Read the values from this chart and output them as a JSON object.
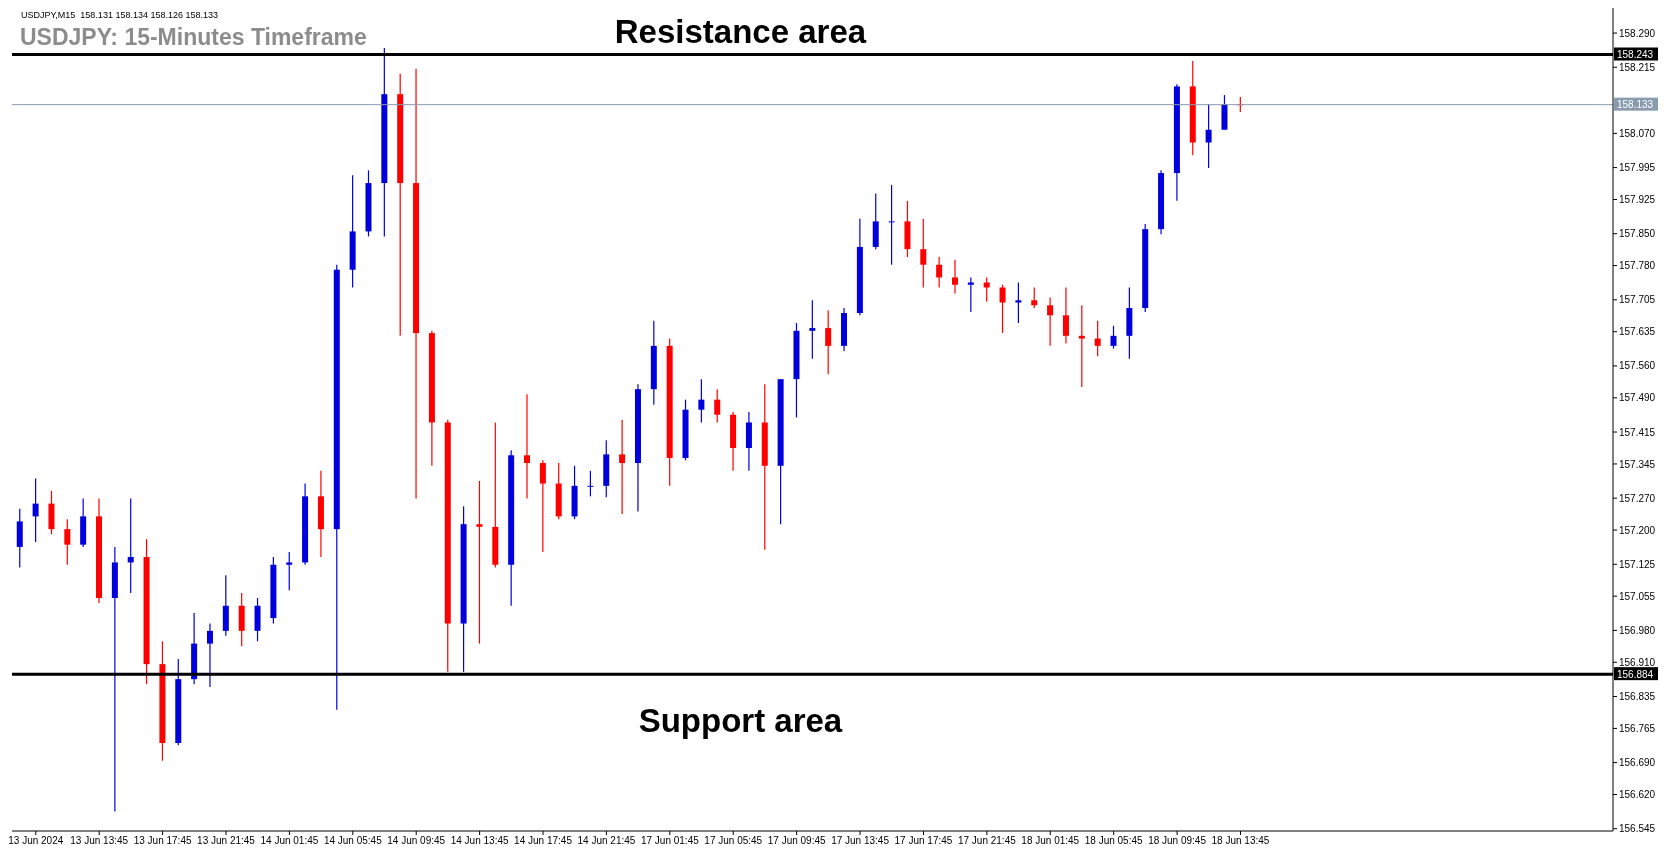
{
  "chart_data": {
    "type": "candlestick",
    "title": "USDJPY: 15-Minutes Timeframe",
    "annotations": [
      "USDJPY,M15  158.131 158.134 158.126 158.133",
      {
        "text": "Resistance area",
        "y": 158.243
      },
      {
        "text": "Support area",
        "y": 156.884
      }
    ],
    "categories": [
      null,
      "13 Jun 2024",
      null,
      null,
      null,
      "13 Jun 13:45",
      null,
      null,
      null,
      "13 Jun 17:45",
      null,
      null,
      null,
      "13 Jun 21:45",
      null,
      null,
      null,
      "14 Jun 01:45",
      null,
      null,
      null,
      "14 Jun 05:45",
      null,
      null,
      null,
      "14 Jun 09:45",
      null,
      null,
      null,
      "14 Jun 13:45",
      null,
      null,
      null,
      "14 Jun 17:45",
      null,
      null,
      null,
      "14 Jun 21:45",
      null,
      null,
      null,
      "17 Jun 01:45",
      null,
      null,
      null,
      "17 Jun 05:45",
      null,
      null,
      null,
      "17 Jun 09:45",
      null,
      null,
      null,
      "17 Jun 13:45",
      null,
      null,
      null,
      "17 Jun 17:45",
      null,
      null,
      null,
      "17 Jun 21:45",
      null,
      null,
      null,
      "18 Jun 01:45",
      null,
      null,
      null,
      "18 Jun 05:45",
      null,
      null,
      null,
      "18 Jun 09:45",
      null,
      null,
      null,
      "18 Jun 13:45",
      null,
      null,
      null,
      null,
      null,
      null,
      null,
      null,
      null,
      null,
      null,
      null,
      null,
      null,
      null,
      null,
      null,
      null,
      null,
      null,
      null,
      null,
      null
    ],
    "ohlc": [
      [
        157.163,
        157.247,
        157.118,
        157.219
      ],
      [
        157.23,
        157.313,
        157.174,
        157.258
      ],
      [
        157.258,
        157.286,
        157.191,
        157.202
      ],
      [
        157.202,
        157.224,
        157.124,
        157.168
      ],
      [
        157.168,
        157.269,
        157.163,
        157.23
      ],
      [
        157.23,
        157.269,
        157.04,
        157.051
      ],
      [
        157.051,
        157.163,
        156.583,
        157.129
      ],
      [
        157.129,
        157.269,
        157.062,
        157.141
      ],
      [
        157.141,
        157.18,
        156.862,
        156.906
      ],
      [
        156.906,
        156.956,
        156.694,
        156.733
      ],
      [
        156.733,
        156.917,
        156.728,
        156.873
      ],
      [
        156.873,
        157.018,
        156.862,
        156.951
      ],
      [
        156.951,
        156.995,
        156.856,
        156.979
      ],
      [
        156.979,
        157.101,
        156.968,
        157.034
      ],
      [
        157.034,
        157.062,
        156.945,
        156.979
      ],
      [
        156.979,
        157.051,
        156.956,
        157.034
      ],
      [
        157.007,
        157.141,
        156.995,
        157.124
      ],
      [
        157.124,
        157.152,
        157.068,
        157.129
      ],
      [
        157.129,
        157.302,
        157.124,
        157.274
      ],
      [
        157.274,
        157.33,
        157.141,
        157.202
      ],
      [
        157.202,
        157.782,
        156.806,
        157.771
      ],
      [
        157.771,
        157.978,
        157.732,
        157.855
      ],
      [
        157.855,
        157.989,
        157.844,
        157.961
      ],
      [
        157.961,
        158.257,
        157.844,
        158.156
      ],
      [
        158.156,
        158.201,
        157.626,
        157.961
      ],
      [
        157.961,
        158.212,
        157.269,
        157.632
      ],
      [
        157.632,
        157.637,
        157.341,
        157.436
      ],
      [
        157.436,
        157.442,
        156.889,
        156.995
      ],
      [
        156.995,
        157.252,
        156.889,
        157.213
      ],
      [
        157.213,
        157.308,
        156.951,
        157.207
      ],
      [
        157.207,
        157.436,
        157.118,
        157.124
      ],
      [
        157.124,
        157.375,
        157.034,
        157.364
      ],
      [
        157.364,
        157.498,
        157.269,
        157.347
      ],
      [
        157.347,
        157.353,
        157.152,
        157.302
      ],
      [
        157.302,
        157.347,
        157.224,
        157.23
      ],
      [
        157.23,
        157.341,
        157.224,
        157.297
      ],
      [
        157.297,
        157.33,
        157.274,
        157.297
      ],
      [
        157.297,
        157.397,
        157.272,
        157.366
      ],
      [
        157.366,
        157.442,
        157.235,
        157.347
      ],
      [
        157.347,
        157.52,
        157.241,
        157.509
      ],
      [
        157.509,
        157.659,
        157.475,
        157.604
      ],
      [
        157.604,
        157.62,
        157.297,
        157.358
      ],
      [
        157.358,
        157.486,
        157.353,
        157.464
      ],
      [
        157.464,
        157.531,
        157.436,
        157.486
      ],
      [
        157.486,
        157.509,
        157.436,
        157.453
      ],
      [
        157.453,
        157.459,
        157.33,
        157.38
      ],
      [
        157.38,
        157.459,
        157.33,
        157.436
      ],
      [
        157.436,
        157.52,
        157.157,
        157.341
      ],
      [
        157.341,
        157.531,
        157.213,
        157.531
      ],
      [
        157.531,
        157.654,
        157.447,
        157.637
      ],
      [
        157.637,
        157.704,
        157.576,
        157.643
      ],
      [
        157.643,
        157.682,
        157.542,
        157.604
      ],
      [
        157.604,
        157.687,
        157.592,
        157.676
      ],
      [
        157.676,
        157.883,
        157.671,
        157.821
      ],
      [
        157.821,
        157.938,
        157.816,
        157.877
      ],
      [
        157.877,
        157.957,
        157.782,
        157.877
      ],
      [
        157.877,
        157.922,
        157.799,
        157.816
      ],
      [
        157.816,
        157.883,
        157.732,
        157.782
      ],
      [
        157.782,
        157.799,
        157.732,
        157.754
      ],
      [
        157.754,
        157.793,
        157.719,
        157.738
      ],
      [
        157.738,
        157.754,
        157.678,
        157.743
      ],
      [
        157.743,
        157.754,
        157.701,
        157.732
      ],
      [
        157.732,
        157.738,
        157.632,
        157.699
      ],
      [
        157.699,
        157.743,
        157.654,
        157.704
      ],
      [
        157.704,
        157.732,
        157.687,
        157.693
      ],
      [
        157.693,
        157.71,
        157.604,
        157.671
      ],
      [
        157.671,
        157.732,
        157.609,
        157.626
      ],
      [
        157.626,
        157.693,
        157.514,
        157.62
      ],
      [
        157.62,
        157.659,
        157.581,
        157.604
      ],
      [
        157.604,
        157.648,
        157.598,
        157.626
      ],
      [
        157.626,
        157.732,
        157.576,
        157.687
      ],
      [
        157.687,
        157.871,
        157.678,
        157.86
      ],
      [
        157.86,
        157.989,
        157.849,
        157.983
      ],
      [
        157.983,
        158.178,
        157.922,
        158.173
      ],
      [
        158.173,
        158.229,
        158.022,
        158.05
      ],
      [
        158.05,
        158.134,
        157.994,
        158.078
      ],
      [
        158.078,
        158.154,
        158.078,
        158.134
      ],
      [
        158.134,
        158.15,
        158.117,
        158.133
      ],
      null,
      null,
      null,
      null,
      null,
      null,
      null,
      null,
      null,
      null,
      null,
      null,
      null,
      null,
      null,
      null,
      null,
      null,
      null,
      null,
      null,
      null,
      null
    ],
    "colors": [
      "#0000dd",
      "#0000dd",
      "#ff0000",
      "#ff0000",
      "#0000dd",
      "#ff0000",
      "#0000dd",
      "#0000dd",
      "#ff0000",
      "#ff0000",
      "#0000dd",
      "#0000dd",
      "#0000dd",
      "#0000dd",
      "#ff0000",
      "#0000dd",
      "#0000dd",
      "#0000dd",
      "#0000dd",
      "#ff0000",
      "#0000dd",
      "#0000dd",
      "#0000dd",
      "#0000dd",
      "#ff0000",
      "#ff0000",
      "#ff0000",
      "#ff0000",
      "#0000dd",
      "#ff0000",
      "#ff0000",
      "#0000dd",
      "#ff0000",
      "#ff0000",
      "#ff0000",
      "#0000dd",
      "#0000dd",
      "#0000dd",
      "#ff0000",
      "#0000dd",
      "#0000dd",
      "#ff0000",
      "#0000dd",
      "#0000dd",
      "#ff0000",
      "#ff0000",
      "#0000dd",
      "#ff0000",
      "#0000dd",
      "#0000dd",
      "#0000dd",
      "#ff0000",
      "#0000dd",
      "#0000dd",
      "#0000dd",
      "#0000dd",
      "#ff0000",
      "#ff0000",
      "#ff0000",
      "#ff0000",
      "#0000dd",
      "#ff0000",
      "#ff0000",
      "#0000dd",
      "#ff0000",
      "#ff0000",
      "#ff0000",
      "#ff0000",
      "#ff0000",
      "#0000dd",
      "#0000dd",
      "#0000dd",
      "#0000dd",
      "#0000dd",
      "#ff0000",
      "#0000dd",
      "#0000dd",
      "#ff0000",
      null,
      null,
      null,
      null,
      null,
      null,
      null,
      null,
      null,
      null,
      null,
      null,
      null,
      null,
      null,
      null,
      null,
      null,
      null,
      null,
      null,
      null,
      null
    ],
    "ylim": [
      156.54,
      158.345
    ],
    "yticks": [
      {
        "value": 158.29,
        "label": "158.290"
      },
      158.215,
      {
        "value": 158.07,
        "label": "158.070"
      },
      157.995,
      157.925,
      {
        "value": 157.85,
        "label": "157.850"
      },
      {
        "value": 157.78,
        "label": "157.780"
      },
      157.705,
      157.635,
      {
        "value": 157.56,
        "label": "157.560"
      },
      {
        "value": 157.49,
        "label": "157.490"
      },
      157.415,
      157.345,
      {
        "value": 157.27,
        "label": "157.270"
      },
      {
        "value": 157.2,
        "label": "157.200"
      },
      157.125,
      157.055,
      {
        "value": 156.98,
        "label": "156.980"
      },
      {
        "value": 156.91,
        "label": "156.910"
      },
      156.835,
      156.765,
      {
        "value": 156.69,
        "label": "156.690"
      },
      {
        "value": 156.62,
        "label": "156.620"
      },
      156.545
    ],
    "ref_lines": [
      {
        "axis": "y",
        "value": 158.243,
        "label": "158.243",
        "color": "#000000"
      },
      {
        "axis": "y",
        "value": 156.884,
        "label": "156.884",
        "color": "#000000"
      },
      {
        "axis": "y",
        "value": 158.133,
        "label": "158.133",
        "color": "#8a9bb0"
      }
    ]
  }
}
